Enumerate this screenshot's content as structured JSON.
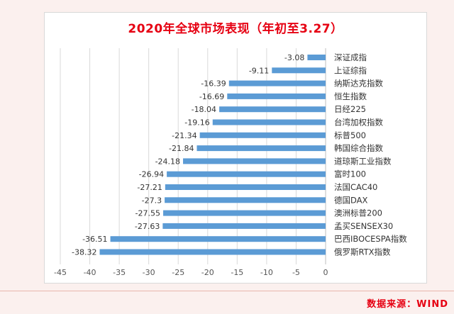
{
  "source_note": "数据来源：WIND",
  "colors": {
    "bar": "#5b9bd5",
    "title": "#e60012",
    "axis": "#bfbfbf"
  },
  "chart_data": {
    "type": "bar",
    "orientation": "horizontal",
    "title": "2020年全球市场表现（年初至3.27）",
    "xlabel": "",
    "ylabel": "",
    "xlim": [
      -45,
      0
    ],
    "xticks": [
      -45,
      -40,
      -35,
      -30,
      -25,
      -20,
      -15,
      -10,
      -5,
      0
    ],
    "grid": true,
    "legend": false,
    "categories": [
      "深证成指",
      "上证综指",
      "纳斯达克指数",
      "恒生指数",
      "日经225",
      "台湾加权指数",
      "标普500",
      "韩国综合指数",
      "道琼斯工业指数",
      "富时100",
      "法国CAC40",
      "德国DAX",
      "澳洲标普200",
      "孟买SENSEX30",
      "巴西IBOCESPA指数",
      "俄罗斯RTX指数"
    ],
    "values": [
      -3.08,
      -9.11,
      -16.39,
      -16.69,
      -18.04,
      -19.16,
      -21.34,
      -21.84,
      -24.18,
      -26.94,
      -27.21,
      -27.3,
      -27.55,
      -27.63,
      -36.51,
      -38.32
    ],
    "value_labels": [
      "-3.08",
      "-9.11",
      "-16.39",
      "-16.69",
      "-18.04",
      "-19.16",
      "-21.34",
      "-21.84",
      "-24.18",
      "-26.94",
      "-27.21",
      "-27.3",
      "-27.55",
      "-27.63",
      "-36.51",
      "-38.32"
    ]
  }
}
